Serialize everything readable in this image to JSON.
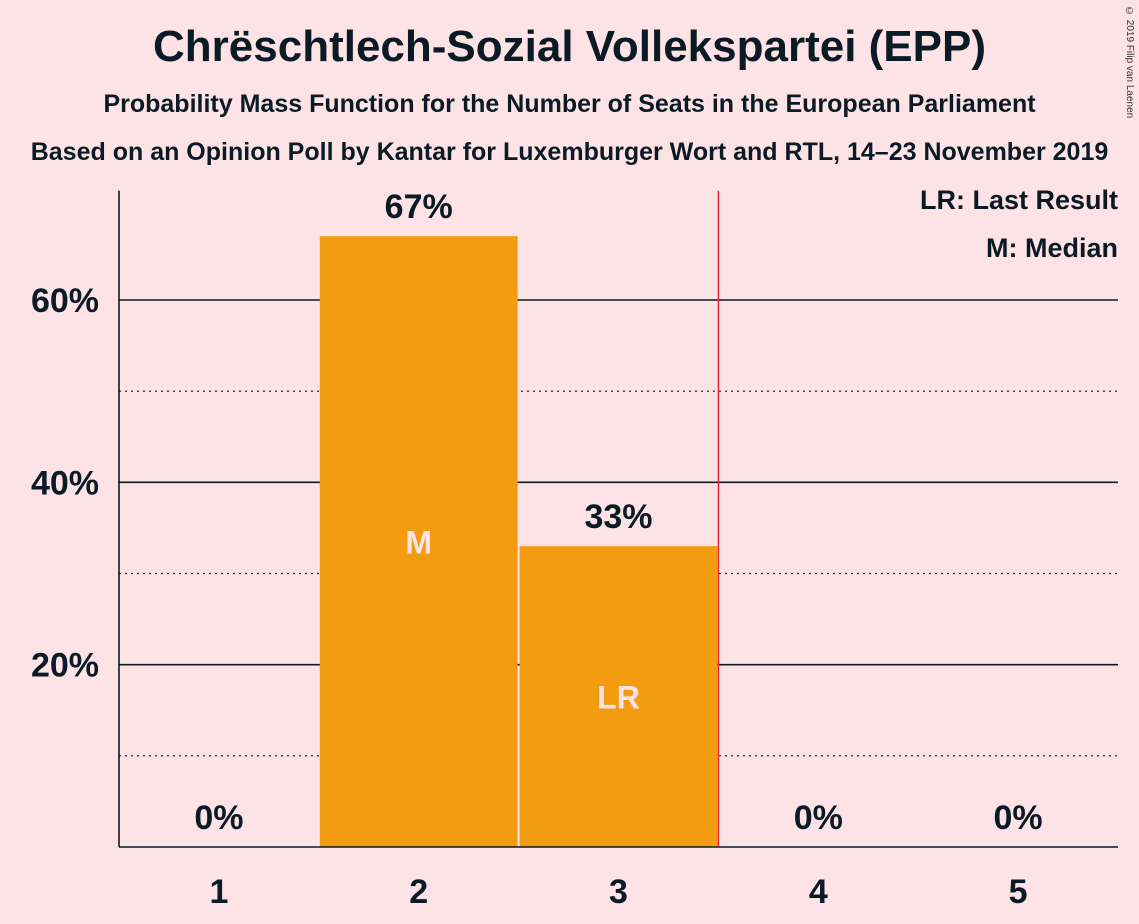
{
  "header": {
    "title": "Chrëschtlech-Sozial Vollekspartei (EPP)",
    "subtitle": "Probability Mass Function for the Number of Seats in the European Parliament",
    "source": "Based on an Opinion Poll by Kantar for Luxemburger Wort and RTL, 14–23 November 2019",
    "copyright": "© 2019 Filip van Laenen"
  },
  "legend": {
    "last_result": "LR: Last Result",
    "median": "M: Median"
  },
  "chart_data": {
    "type": "bar",
    "categories": [
      "1",
      "2",
      "3",
      "4",
      "5"
    ],
    "values": [
      0,
      67,
      33,
      0,
      0
    ],
    "value_labels": [
      "0%",
      "67%",
      "33%",
      "0%",
      "0%"
    ],
    "bar_markers": [
      "",
      "M",
      "LR",
      "",
      ""
    ],
    "ylim": [
      0,
      72
    ],
    "yticks": [
      20,
      40,
      60
    ],
    "ytick_labels": [
      "20%",
      "40%",
      "60%"
    ],
    "minor_gridlines": [
      10,
      30,
      50
    ],
    "last_result_seats": 3,
    "bar_color": "#f39c12",
    "last_result_line_color": "#e8253b",
    "legend_position": "top-right",
    "grid": true
  }
}
